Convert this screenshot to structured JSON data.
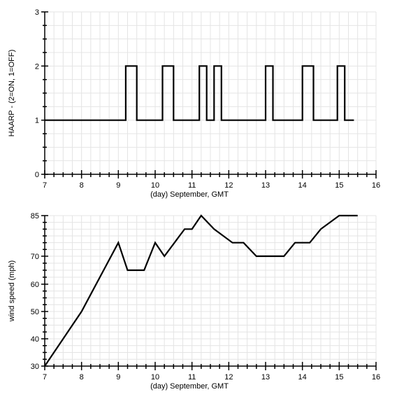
{
  "chart_data": [
    {
      "type": "line",
      "title": "",
      "xlabel": "(day) September, GMT",
      "ylabel": "HAARP - (2=ON, 1=OFF)",
      "xlim": [
        7,
        16
      ],
      "ylim": [
        0,
        3
      ],
      "x_ticks": [
        "7",
        "8",
        "9",
        "10",
        "11",
        "12",
        "13",
        "14",
        "15",
        "16"
      ],
      "y_ticks": [
        "0",
        "1",
        "2",
        "3"
      ],
      "grid": true,
      "series": [
        {
          "x": [
            7,
            9.2,
            9.2,
            9.5,
            9.5,
            10.2,
            10.2,
            10.5,
            10.5,
            11.2,
            11.2,
            11.4,
            11.4,
            11.6,
            11.6,
            11.8,
            11.8,
            13.0,
            13.0,
            13.2,
            13.2,
            14.0,
            14.0,
            14.3,
            14.3,
            14.95,
            14.95,
            15.15,
            15.15,
            15.4
          ],
          "y": [
            1,
            1,
            2,
            2,
            1,
            1,
            2,
            2,
            1,
            1,
            2,
            2,
            1,
            1,
            2,
            2,
            1,
            1,
            2,
            2,
            1,
            1,
            2,
            2,
            1,
            1,
            2,
            2,
            1,
            1
          ]
        }
      ]
    },
    {
      "type": "line",
      "title": "",
      "xlabel": "(day) September, GMT",
      "ylabel": "wind speed (mph)",
      "xlim": [
        7,
        16
      ],
      "ylim": [
        30,
        85
      ],
      "x_ticks": [
        "7",
        "8",
        "9",
        "10",
        "11",
        "12",
        "13",
        "14",
        "15",
        "16"
      ],
      "y_ticks": [
        "30",
        "40",
        "50",
        "60",
        "70",
        "85"
      ],
      "grid": true,
      "series": [
        {
          "x": [
            7,
            8,
            9,
            9.25,
            9.7,
            10,
            10.25,
            10.8,
            11.0,
            11.25,
            11.6,
            12.1,
            12.4,
            12.75,
            13.5,
            13.8,
            14.2,
            14.5,
            15.0,
            15.5
          ],
          "y": [
            30,
            50,
            75,
            65,
            65,
            75,
            70,
            80,
            80,
            85,
            80,
            75,
            75,
            70,
            70,
            75,
            75,
            80,
            85,
            85
          ]
        }
      ]
    }
  ]
}
